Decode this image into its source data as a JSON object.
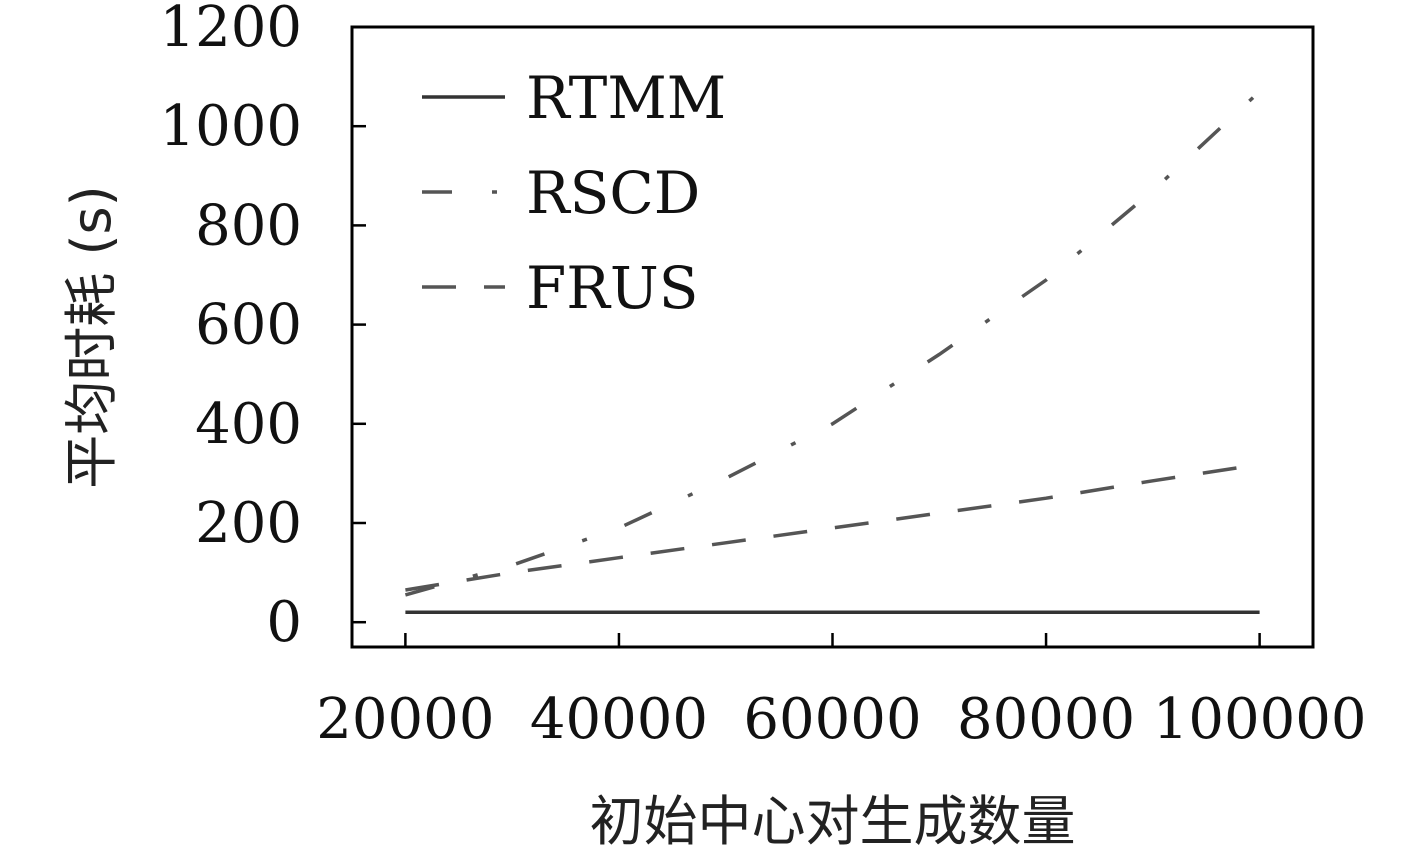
{
  "chart_data": {
    "type": "line",
    "title": "",
    "xlabel": "初始中心对生成数量",
    "ylabel": "平均时耗 (s)",
    "x": [
      20000,
      30000,
      40000,
      50000,
      60000,
      70000,
      80000,
      90000,
      100000
    ],
    "xlim": [
      15000,
      105000
    ],
    "ylim": [
      -50,
      1200
    ],
    "xticks": [
      20000,
      40000,
      60000,
      80000,
      100000
    ],
    "yticks": [
      0,
      200,
      400,
      600,
      800,
      1000,
      1200
    ],
    "series": [
      {
        "name": "RTMM",
        "values": [
          20,
          20,
          20,
          20,
          20,
          20,
          20,
          20,
          20
        ],
        "color": "#333333",
        "dash": "solid"
      },
      {
        "name": "RSCD",
        "values": [
          55,
          115,
          190,
          290,
          400,
          540,
          690,
          870,
          1070
        ],
        "color": "#555555",
        "dash": "dashdot"
      },
      {
        "name": "FRUS",
        "values": [
          65,
          100,
          130,
          160,
          190,
          220,
          250,
          285,
          318
        ],
        "color": "#555555",
        "dash": "dashed"
      }
    ],
    "grid": false,
    "legend_position": "top-left"
  }
}
